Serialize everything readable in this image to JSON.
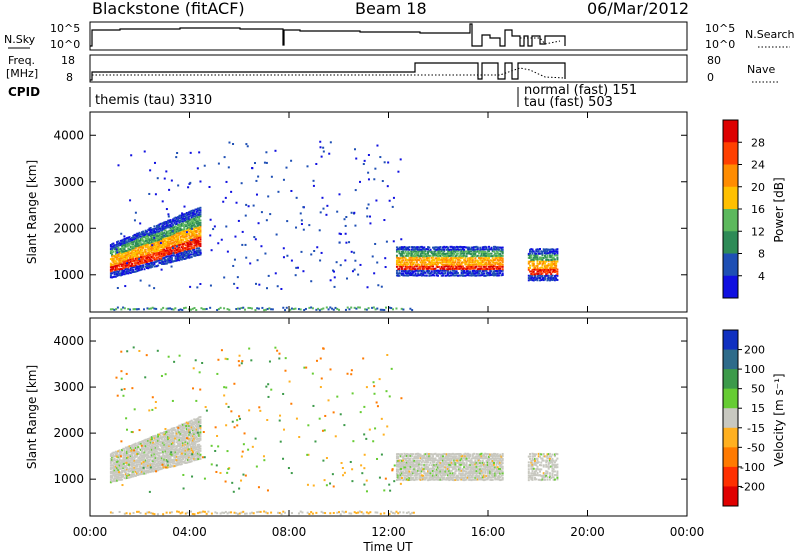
{
  "header": {
    "station": "Blackstone (fitACF)",
    "beam": "Beam 18",
    "date": "06/Mar/2012"
  },
  "summary_panels": {
    "nsky_label": "N.Sky",
    "nsearch_label": "N.Search",
    "nsky_ticks": [
      "10^5",
      "10^0"
    ],
    "nsky_right_ticks": [
      "10^5",
      "10^0"
    ],
    "freq_label_1": "Freq.",
    "freq_label_2": "[MHz]",
    "freq_ticks": [
      "18",
      "8"
    ],
    "nave_label": "Nave",
    "nave_ticks": [
      "80",
      "0"
    ],
    "cpid_label": "CPID",
    "cpid_entries": [
      "themis (tau) 3310",
      "normal (fast) 151",
      "tau (fast) 503"
    ]
  },
  "chart_data": [
    {
      "type": "heatmap",
      "name": "power",
      "ylabel": "Slant Range [km]",
      "ylim": [
        200,
        4500
      ],
      "yticks": [
        "4000",
        "3000",
        "2000",
        "1000"
      ],
      "xlim_hours": [
        0,
        24
      ],
      "colorbar_title": "Power [dB]",
      "colorbar_ticks": [
        "28",
        "24",
        "20",
        "16",
        "12",
        "8",
        "4"
      ],
      "colorbar_colors": [
        "#dd0000",
        "#ff4000",
        "#ff8c00",
        "#ffc000",
        "#5cb85c",
        "#2e8b57",
        "#1e4fb4",
        "#1010e0"
      ]
    },
    {
      "type": "heatmap",
      "name": "velocity",
      "ylabel": "Slant Range [km]",
      "ylim": [
        200,
        4500
      ],
      "yticks": [
        "4000",
        "3000",
        "2000",
        "1000"
      ],
      "xlim_hours": [
        0,
        24
      ],
      "xlabel": "Time UT",
      "xticks": [
        "00:00",
        "04:00",
        "08:00",
        "12:00",
        "16:00",
        "20:00",
        "00:00"
      ],
      "colorbar_title": "Velocity [m s⁻¹]",
      "colorbar_ticks": [
        "200",
        "100",
        "50",
        "15",
        "-15",
        "-50",
        "-100",
        "-200"
      ],
      "colorbar_colors": [
        "#1030c0",
        "#2e6b8a",
        "#3c9a4a",
        "#66cc33",
        "#c8c8c0",
        "#ffb020",
        "#ff7a00",
        "#ff3000",
        "#e00000"
      ]
    }
  ]
}
